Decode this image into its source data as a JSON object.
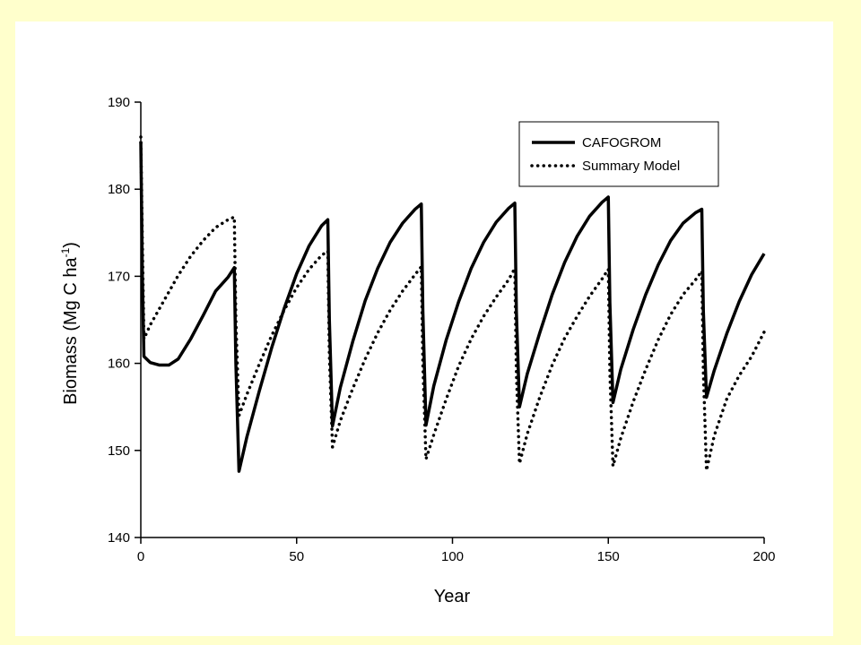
{
  "chart_data": {
    "type": "line",
    "title": "",
    "xlabel": "Year",
    "ylabel": {
      "main": "Biomass (Mg C ha",
      "sup": "-1",
      "close": ")"
    },
    "xlim": [
      0,
      200
    ],
    "ylim": [
      140,
      190
    ],
    "xticks": [
      "0",
      "50",
      "100",
      "150",
      "200"
    ],
    "yticks": [
      "140",
      "150",
      "160",
      "170",
      "180",
      "190"
    ],
    "grid": false,
    "legend_position": "top-right",
    "series": [
      {
        "name": "CAFOGROM",
        "style": "solid",
        "color": "#000000",
        "x": [
          0,
          0.5,
          1,
          3,
          6,
          9,
          12,
          16,
          20,
          24,
          28,
          30,
          30.5,
          31.5,
          34,
          38,
          42,
          46,
          50,
          54,
          58,
          60,
          60.5,
          61.5,
          64,
          68,
          72,
          76,
          80,
          84,
          88,
          90,
          90.5,
          91.5,
          94,
          98,
          102,
          106,
          110,
          114,
          118,
          120,
          120.5,
          121.5,
          124,
          128,
          132,
          136,
          140,
          144,
          148,
          150,
          150.5,
          151.5,
          154,
          158,
          162,
          166,
          170,
          174,
          178,
          180,
          180.5,
          181.5,
          184,
          188,
          192,
          196,
          200
        ],
        "y": [
          185.5,
          170,
          160.8,
          160.1,
          159.8,
          159.8,
          160.5,
          162.8,
          165.5,
          168.3,
          169.9,
          171,
          160,
          147.6,
          151.5,
          156.8,
          161.8,
          166.3,
          170.3,
          173.5,
          175.8,
          176.5,
          165,
          152.8,
          157.2,
          162.5,
          167.2,
          170.9,
          173.9,
          176.1,
          177.7,
          178.3,
          166,
          152.9,
          157.4,
          162.7,
          167.1,
          170.9,
          173.9,
          176.2,
          177.8,
          178.4,
          166,
          155,
          158.8,
          163.5,
          167.9,
          171.6,
          174.6,
          176.9,
          178.5,
          179.1,
          167,
          155.5,
          159.3,
          163.9,
          167.9,
          171.3,
          174.1,
          176.1,
          177.3,
          177.7,
          166,
          156.1,
          159.2,
          163.4,
          167.1,
          170.2,
          172.6
        ]
      },
      {
        "name": "Summary Model",
        "style": "dotted",
        "color": "#000000",
        "x": [
          0,
          0.5,
          1,
          3,
          6,
          9,
          12,
          16,
          20,
          24,
          28,
          30,
          30.5,
          31.5,
          34,
          38,
          42,
          46,
          50,
          54,
          58,
          60,
          60.5,
          61.5,
          64,
          68,
          72,
          76,
          80,
          84,
          88,
          90,
          90.5,
          91.5,
          94,
          98,
          102,
          106,
          110,
          114,
          118,
          120,
          120.5,
          121.5,
          124,
          128,
          132,
          136,
          140,
          144,
          148,
          150,
          150.5,
          151.5,
          154,
          158,
          162,
          166,
          170,
          174,
          178,
          180,
          180.5,
          181.5,
          184,
          188,
          192,
          196,
          200
        ],
        "y": [
          186,
          174,
          162.8,
          164.4,
          166.3,
          168.2,
          170.1,
          172.3,
          174.1,
          175.6,
          176.5,
          176.8,
          165,
          154,
          156.4,
          159.9,
          163.2,
          166.1,
          168.7,
          170.8,
          172.4,
          172.9,
          161,
          150.4,
          153.4,
          157.1,
          160.5,
          163.5,
          166.1,
          168.3,
          170.2,
          171.1,
          160,
          149,
          151.8,
          155.9,
          159.7,
          162.8,
          165.4,
          167.6,
          169.6,
          170.9,
          159,
          148.5,
          151.9,
          156.1,
          159.8,
          162.9,
          165.4,
          167.7,
          169.7,
          170.8,
          159,
          148.2,
          151.4,
          155.6,
          159.3,
          162.7,
          165.6,
          167.9,
          169.6,
          170.6,
          159,
          147.7,
          151.7,
          155.9,
          158.6,
          160.8,
          163.6
        ]
      }
    ]
  }
}
